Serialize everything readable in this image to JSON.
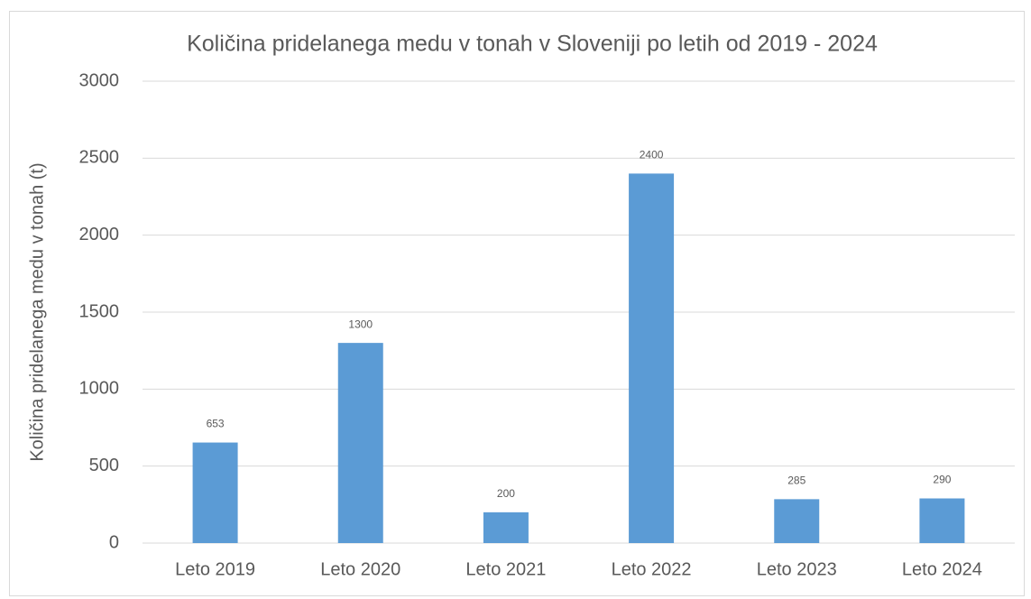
{
  "chart_data": {
    "type": "bar",
    "title": "Količina pridelanega medu v tonah v Sloveniji po letih od 2019 - 2024",
    "y_label": "Količina pridelanega medu v tonah (t)",
    "categories": [
      "Leto 2019",
      "Leto 2020",
      "Leto 2021",
      "Leto 2022",
      "Leto 2023",
      "Leto 2024"
    ],
    "values": [
      653,
      1300,
      200,
      2400,
      285,
      290
    ],
    "color": "#5b9bd5",
    "ylim": [
      0,
      3000
    ],
    "yticks": [
      0,
      500,
      1000,
      1500,
      2000,
      2500,
      3000
    ],
    "grid": true
  }
}
